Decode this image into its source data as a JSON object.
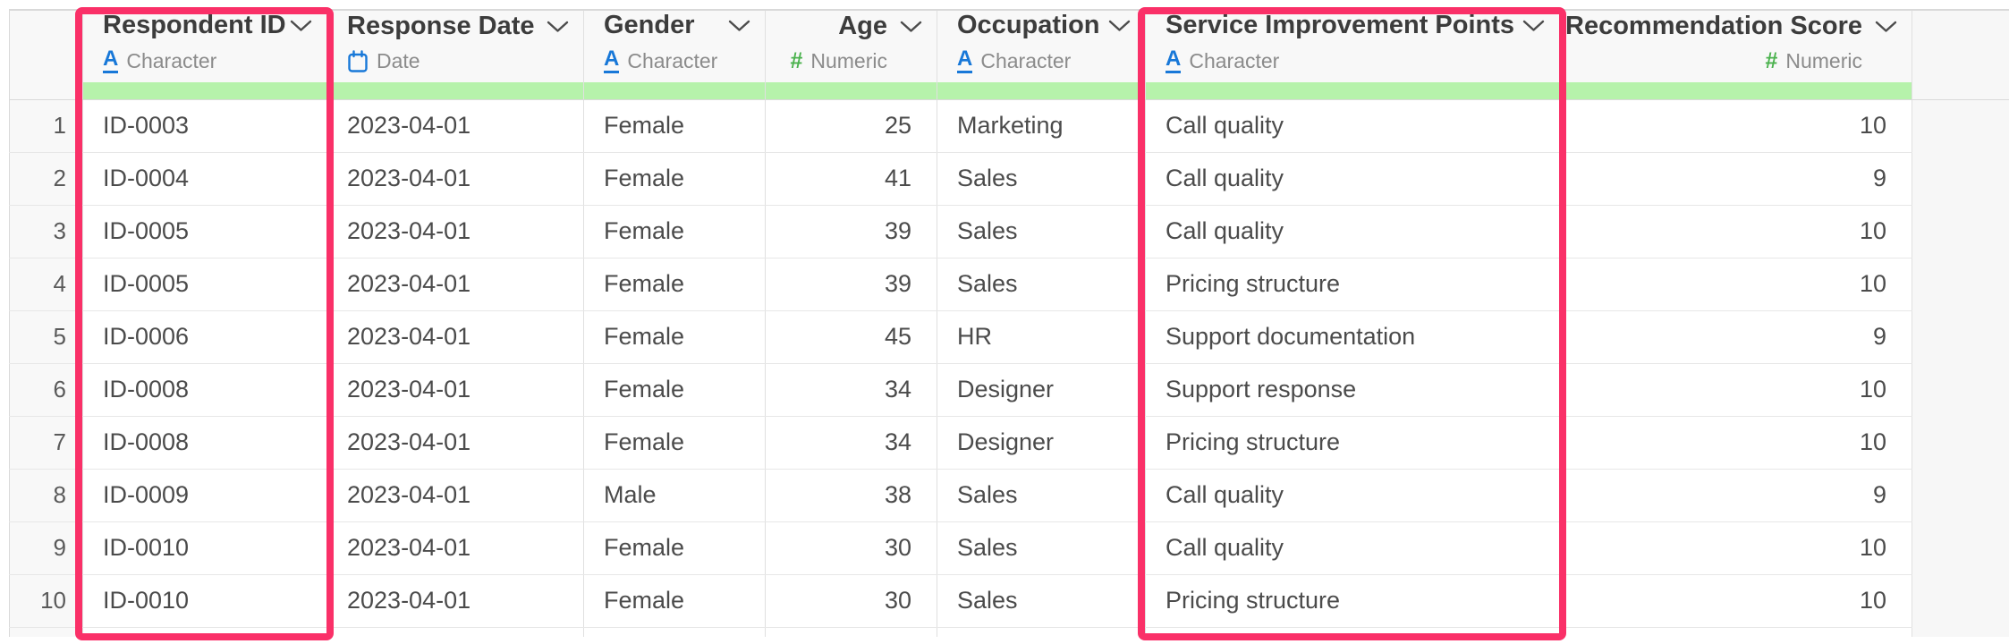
{
  "colors": {
    "highlight_box": "#fa3068",
    "green_bar": "#b6f2ab",
    "character_icon_blue": "#1878d8",
    "date_icon_blue": "#1878d8",
    "numeric_icon_green": "#4bb24e"
  },
  "annotations": {
    "highlighted_columns": [
      "Respondent ID",
      "Service Improvement Points"
    ]
  },
  "table": {
    "columns": [
      {
        "id": "respondent_id",
        "label": "Respondent ID",
        "type_label": "Character",
        "icon": "character-icon",
        "align": "left",
        "highlighted": true
      },
      {
        "id": "response_date",
        "label": "Response Date",
        "type_label": "Date",
        "icon": "date-icon",
        "align": "left",
        "highlighted": false
      },
      {
        "id": "gender",
        "label": "Gender",
        "type_label": "Character",
        "icon": "character-icon",
        "align": "left",
        "highlighted": false
      },
      {
        "id": "age",
        "label": "Age",
        "type_label": "Numeric",
        "icon": "numeric-icon",
        "align": "right",
        "highlighted": false
      },
      {
        "id": "occupation",
        "label": "Occupation",
        "type_label": "Character",
        "icon": "character-icon",
        "align": "left",
        "highlighted": false
      },
      {
        "id": "service_improvement_points",
        "label": "Service Improvement Points",
        "type_label": "Character",
        "icon": "character-icon",
        "align": "left",
        "highlighted": true
      },
      {
        "id": "recommendation_score",
        "label": "Recommendation Score",
        "type_label": "Numeric",
        "icon": "numeric-icon",
        "align": "right",
        "highlighted": false
      }
    ],
    "rows": [
      {
        "row_number": "1",
        "respondent_id": "ID-0003",
        "response_date": "2023-04-01",
        "gender": "Female",
        "age": "25",
        "occupation": "Marketing",
        "service_improvement_points": "Call quality",
        "recommendation_score": "10"
      },
      {
        "row_number": "2",
        "respondent_id": "ID-0004",
        "response_date": "2023-04-01",
        "gender": "Female",
        "age": "41",
        "occupation": "Sales",
        "service_improvement_points": "Call quality",
        "recommendation_score": "9"
      },
      {
        "row_number": "3",
        "respondent_id": "ID-0005",
        "response_date": "2023-04-01",
        "gender": "Female",
        "age": "39",
        "occupation": "Sales",
        "service_improvement_points": "Call quality",
        "recommendation_score": "10"
      },
      {
        "row_number": "4",
        "respondent_id": "ID-0005",
        "response_date": "2023-04-01",
        "gender": "Female",
        "age": "39",
        "occupation": "Sales",
        "service_improvement_points": "Pricing structure",
        "recommendation_score": "10"
      },
      {
        "row_number": "5",
        "respondent_id": "ID-0006",
        "response_date": "2023-04-01",
        "gender": "Female",
        "age": "45",
        "occupation": "HR",
        "service_improvement_points": "Support documentation",
        "recommendation_score": "9"
      },
      {
        "row_number": "6",
        "respondent_id": "ID-0008",
        "response_date": "2023-04-01",
        "gender": "Female",
        "age": "34",
        "occupation": "Designer",
        "service_improvement_points": "Support response",
        "recommendation_score": "10"
      },
      {
        "row_number": "7",
        "respondent_id": "ID-0008",
        "response_date": "2023-04-01",
        "gender": "Female",
        "age": "34",
        "occupation": "Designer",
        "service_improvement_points": "Pricing structure",
        "recommendation_score": "10"
      },
      {
        "row_number": "8",
        "respondent_id": "ID-0009",
        "response_date": "2023-04-01",
        "gender": "Male",
        "age": "38",
        "occupation": "Sales",
        "service_improvement_points": "Call quality",
        "recommendation_score": "9"
      },
      {
        "row_number": "9",
        "respondent_id": "ID-0010",
        "response_date": "2023-04-01",
        "gender": "Female",
        "age": "30",
        "occupation": "Sales",
        "service_improvement_points": "Call quality",
        "recommendation_score": "10"
      },
      {
        "row_number": "10",
        "respondent_id": "ID-0010",
        "response_date": "2023-04-01",
        "gender": "Female",
        "age": "30",
        "occupation": "Sales",
        "service_improvement_points": "Pricing structure",
        "recommendation_score": "10"
      }
    ]
  }
}
